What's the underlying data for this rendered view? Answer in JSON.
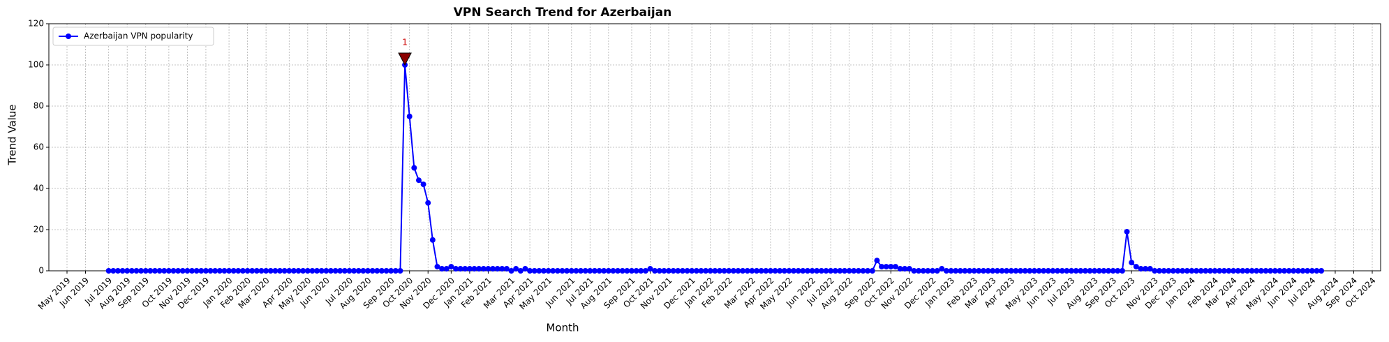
{
  "chart_data": {
    "type": "line",
    "title": "VPN Search Trend for Azerbaijan",
    "x_label": "Month",
    "y_label": "Trend Value",
    "ylim": [
      0,
      120
    ],
    "yticks": [
      0,
      20,
      40,
      60,
      80,
      100,
      120
    ],
    "grid": true,
    "legend": "upper left",
    "categories": [
      "May 2019",
      null,
      null,
      null,
      "Jun 2019",
      null,
      null,
      null,
      null,
      "Jul 2019",
      null,
      null,
      null,
      "Aug 2019",
      null,
      null,
      null,
      "Sep 2019",
      null,
      null,
      null,
      null,
      "Oct 2019",
      null,
      null,
      null,
      "Nov 2019",
      null,
      null,
      null,
      "Dec 2019",
      null,
      null,
      null,
      null,
      "Jan 2020",
      null,
      null,
      null,
      "Feb 2020",
      null,
      null,
      null,
      "Mar 2020",
      null,
      null,
      null,
      null,
      "Apr 2020",
      null,
      null,
      null,
      "May 2020",
      null,
      null,
      null,
      "Jun 2020",
      null,
      null,
      null,
      null,
      "Jul 2020",
      null,
      null,
      null,
      "Aug 2020",
      null,
      null,
      null,
      null,
      "Sep 2020",
      null,
      null,
      null,
      "Oct 2020",
      null,
      null,
      null,
      "Nov 2020",
      null,
      null,
      null,
      null,
      "Dec 2020",
      null,
      null,
      null,
      "Jan 2021",
      null,
      null,
      null,
      "Feb 2021",
      null,
      null,
      null,
      null,
      "Mar 2021",
      null,
      null,
      null,
      "Apr 2021",
      null,
      null,
      null,
      "May 2021",
      null,
      null,
      null,
      null,
      "Jun 2021",
      null,
      null,
      null,
      "Jul 2021",
      null,
      null,
      null,
      "Aug 2021",
      null,
      null,
      null,
      null,
      "Sep 2021",
      null,
      null,
      null,
      "Oct 2021",
      null,
      null,
      null,
      "Nov 2021",
      null,
      null,
      null,
      null,
      "Dec 2021",
      null,
      null,
      null,
      "Jan 2022",
      null,
      null,
      null,
      "Feb 2022",
      null,
      null,
      null,
      null,
      "Mar 2022",
      null,
      null,
      null,
      "Apr 2022",
      null,
      null,
      null,
      "May 2022",
      null,
      null,
      null,
      null,
      "Jun 2022",
      null,
      null,
      null,
      "Jul 2022",
      null,
      null,
      null,
      "Aug 2022",
      null,
      null,
      null,
      null,
      "Sep 2022",
      null,
      null,
      null,
      "Oct 2022",
      null,
      null,
      null,
      "Nov 2022",
      null,
      null,
      null,
      null,
      "Dec 2022",
      null,
      null,
      null,
      "Jan 2023",
      null,
      null,
      null,
      null,
      "Feb 2023",
      null,
      null,
      null,
      "Mar 2023",
      null,
      null,
      null,
      "Apr 2023",
      null,
      null,
      null,
      null,
      "May 2023",
      null,
      null,
      null,
      "Jun 2023",
      null,
      null,
      null,
      "Jul 2023",
      null,
      null,
      null,
      null,
      "Aug 2023",
      null,
      null,
      null,
      "Sep 2023",
      null,
      null,
      null,
      "Oct 2023",
      null,
      null,
      null,
      null,
      "Nov 2023",
      null,
      null,
      null,
      "Dec 2023",
      null,
      null,
      null,
      "Jan 2024",
      null,
      null,
      null,
      null,
      "Feb 2024",
      null,
      null,
      null,
      "Mar 2024",
      null,
      null,
      null,
      "Apr 2024",
      null,
      null,
      null,
      null,
      "May 2024",
      null,
      null,
      null,
      "Jun 2024",
      null,
      null,
      null,
      "Jul 2024",
      null,
      null,
      null,
      null,
      "Aug 2024",
      null,
      null,
      null,
      "Sep 2024",
      null,
      null,
      null,
      "Oct 2024"
    ],
    "series": [
      {
        "name": "Azerbaijan VPN popularity",
        "color": "#0000ff",
        "values": [
          null,
          null,
          null,
          null,
          null,
          null,
          null,
          null,
          null,
          0,
          0,
          0,
          0,
          0,
          0,
          0,
          0,
          0,
          0,
          0,
          0,
          0,
          0,
          0,
          0,
          0,
          0,
          0,
          0,
          0,
          0,
          0,
          0,
          0,
          0,
          0,
          0,
          0,
          0,
          0,
          0,
          0,
          0,
          0,
          0,
          0,
          0,
          0,
          0,
          0,
          0,
          0,
          0,
          0,
          0,
          0,
          0,
          0,
          0,
          0,
          0,
          0,
          0,
          0,
          0,
          0,
          0,
          0,
          0,
          0,
          0,
          0,
          0,
          100,
          75,
          50,
          44,
          42,
          33,
          15,
          2,
          1,
          1,
          2,
          1,
          1,
          1,
          1,
          1,
          1,
          1,
          1,
          1,
          1,
          1,
          1,
          0,
          1,
          0,
          1,
          0,
          0,
          0,
          0,
          0,
          0,
          0,
          0,
          0,
          0,
          0,
          0,
          0,
          0,
          0,
          0,
          0,
          0,
          0,
          0,
          0,
          0,
          0,
          0,
          0,
          0,
          1,
          0,
          0,
          0,
          0,
          0,
          0,
          0,
          0,
          0,
          0,
          0,
          0,
          0,
          0,
          0,
          0,
          0,
          0,
          0,
          0,
          0,
          0,
          0,
          0,
          0,
          0,
          0,
          0,
          0,
          0,
          0,
          0,
          0,
          0,
          0,
          0,
          0,
          0,
          0,
          0,
          0,
          0,
          0,
          0,
          0,
          0,
          0,
          0,
          5,
          2,
          2,
          2,
          2,
          1,
          1,
          1,
          0,
          0,
          0,
          0,
          0,
          0,
          1,
          0,
          0,
          0,
          0,
          0,
          0,
          0,
          0,
          0,
          0,
          0,
          0,
          0,
          0,
          0,
          0,
          0,
          0,
          0,
          0,
          0,
          0,
          0,
          0,
          0,
          0,
          0,
          0,
          0,
          0,
          0,
          0,
          0,
          0,
          0,
          0,
          0,
          0,
          0,
          19,
          4,
          2,
          1,
          1,
          1,
          0,
          0,
          0,
          0,
          0,
          0,
          0,
          0,
          0,
          0,
          0,
          0,
          0,
          0,
          0,
          0,
          0,
          0,
          0,
          0,
          0,
          0,
          0,
          0,
          0,
          0,
          0,
          0,
          0,
          0,
          0,
          0,
          0,
          0,
          0,
          0,
          0,
          null,
          null,
          null,
          null,
          null,
          null,
          null,
          null,
          null,
          null,
          null
        ]
      }
    ],
    "annotations": [
      {
        "text": "1",
        "index": 73,
        "color": "#cc0000",
        "marker_color": "#8b0000"
      }
    ]
  }
}
